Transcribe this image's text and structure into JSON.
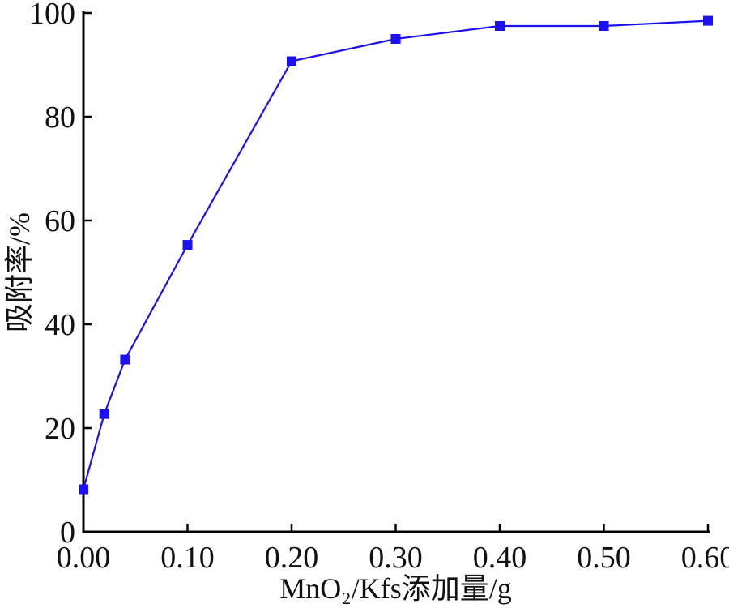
{
  "chart_data": {
    "type": "line",
    "title": "",
    "xlabel": "MnO₂/Kfs添加量/g",
    "ylabel": "吸附率/%",
    "xlim": [
      0.0,
      0.6
    ],
    "ylim": [
      0,
      100
    ],
    "x_ticks": [
      "0.00",
      "0.10",
      "0.20",
      "0.30",
      "0.40",
      "0.50",
      "0.60"
    ],
    "y_ticks": [
      "0",
      "20",
      "40",
      "60",
      "80",
      "100"
    ],
    "grid": false,
    "legend": "none",
    "series": [
      {
        "marker": "square",
        "color": "#1a10f0",
        "x": [
          0.0,
          0.02,
          0.04,
          0.1,
          0.2,
          0.3,
          0.4,
          0.5,
          0.6
        ],
        "y": [
          8.2,
          22.7,
          33.2,
          55.3,
          90.7,
          95.0,
          97.5,
          97.5,
          98.5
        ]
      }
    ]
  }
}
